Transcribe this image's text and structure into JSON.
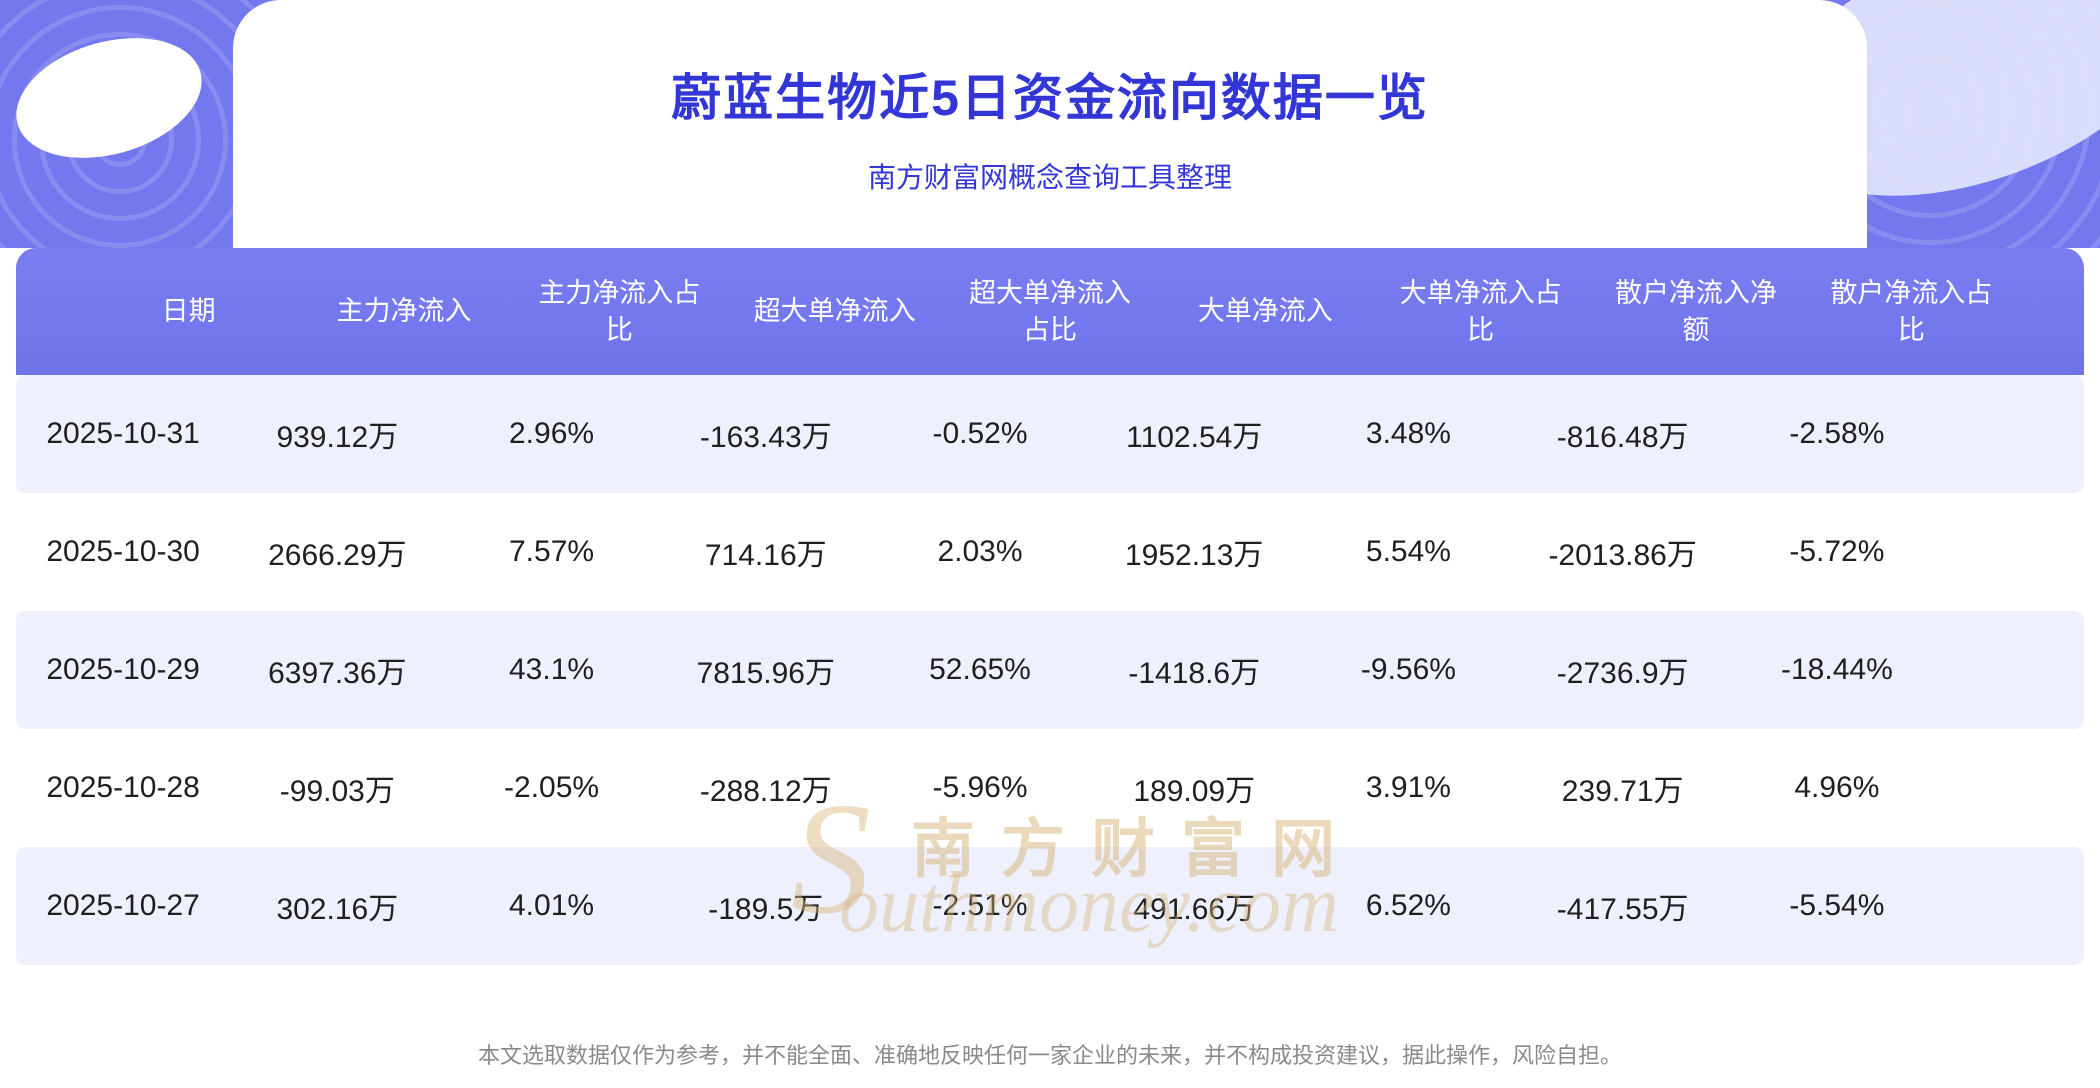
{
  "page": {
    "title": "蔚蓝生物近5日资金流向数据一览",
    "subtitle": "南方财富网概念查询工具整理",
    "disclaimer": "本文选取数据仅作为参考，并不能全面、准确地反映任何一家企业的未来，并不构成投资建议，据此操作，风险自担。"
  },
  "watermark": {
    "initial": "S",
    "line1": "南方财富网",
    "line2": "outhmoney.com"
  },
  "colors": {
    "banner_purple": "#7478ee",
    "header_purple": "#757af0",
    "title_blue": "#3336d6",
    "row_alt": "#eef1fd",
    "watermark_gold": "#d9b57a",
    "footer_gray": "#8a8a8a"
  },
  "chart_data": {
    "type": "table",
    "title": "蔚蓝生物近5日资金流向数据一览",
    "columns": [
      "日期",
      "主力净流入",
      "主力净流入占比",
      "超大单净流入",
      "超大单净流入占比",
      "大单净流入",
      "大单净流入占比",
      "散户净流入净额",
      "散户净流入占比"
    ],
    "rows": [
      [
        "2025-10-31",
        "939.12万",
        "2.96%",
        "-163.43万",
        "-0.52%",
        "1102.54万",
        "3.48%",
        "-816.48万",
        "-2.58%"
      ],
      [
        "2025-10-30",
        "2666.29万",
        "7.57%",
        "714.16万",
        "2.03%",
        "1952.13万",
        "5.54%",
        "-2013.86万",
        "-5.72%"
      ],
      [
        "2025-10-29",
        "6397.36万",
        "43.1%",
        "7815.96万",
        "52.65%",
        "-1418.6万",
        "-9.56%",
        "-2736.9万",
        "-18.44%"
      ],
      [
        "2025-10-28",
        "-99.03万",
        "-2.05%",
        "-288.12万",
        "-5.96%",
        "189.09万",
        "3.91%",
        "239.71万",
        "4.96%"
      ],
      [
        "2025-10-27",
        "302.16万",
        "4.01%",
        "-189.5万",
        "-2.51%",
        "491.66万",
        "6.52%",
        "-417.55万",
        "-5.54%"
      ]
    ]
  }
}
